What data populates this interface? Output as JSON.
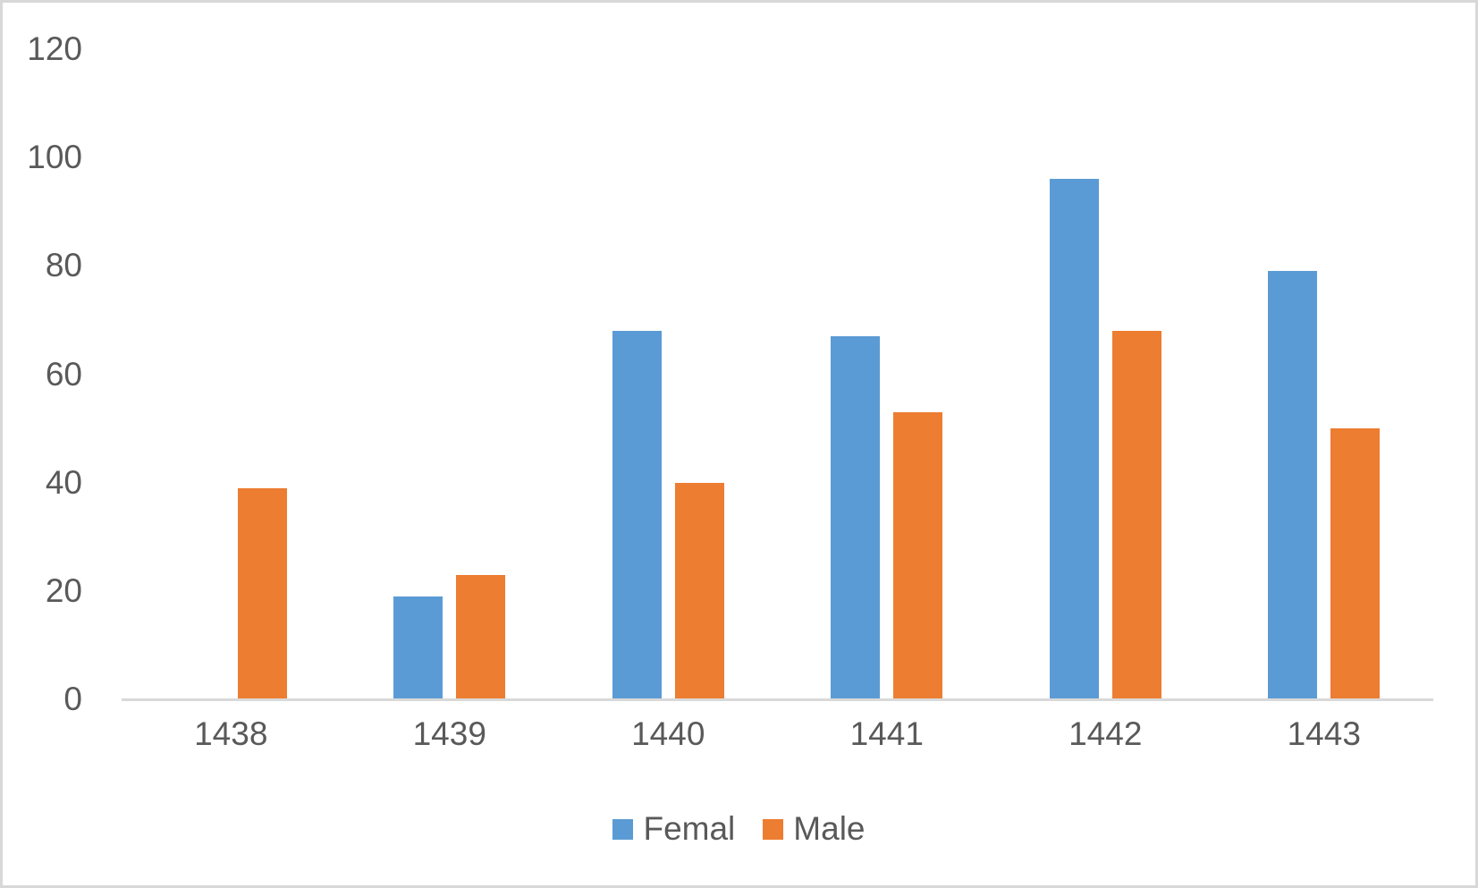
{
  "chart_data": {
    "type": "bar",
    "title": "",
    "categories": [
      "1438",
      "1439",
      "1440",
      "1441",
      "1442",
      "1443"
    ],
    "series": [
      {
        "name": "Femal",
        "color": "#5B9BD5",
        "values": [
          0,
          19,
          68,
          67,
          96,
          79
        ]
      },
      {
        "name": "Male",
        "color": "#ED7D31",
        "values": [
          39,
          23,
          40,
          53,
          68,
          50
        ]
      }
    ],
    "xlabel": "",
    "ylabel": "",
    "ylim": [
      0,
      120
    ],
    "yticks": [
      0,
      20,
      40,
      60,
      80,
      100,
      120
    ],
    "grid": false,
    "legend_position": "bottom"
  },
  "legend": {
    "items": [
      {
        "label": "Femal",
        "color": "#5B9BD5"
      },
      {
        "label": "Male",
        "color": "#ED7D31"
      }
    ]
  },
  "colors": {
    "series_female": "#5B9BD5",
    "series_male": "#ED7D31",
    "axis_text": "#595959",
    "axis_line": "#D9D9D9",
    "frame_border": "#D8D8D8",
    "background": "#FFFFFF"
  }
}
